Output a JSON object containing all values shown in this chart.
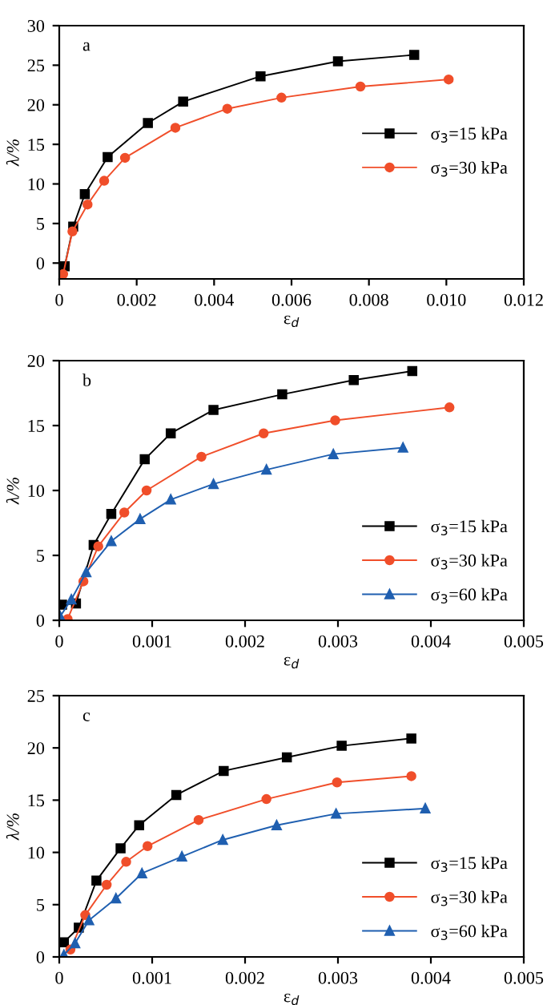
{
  "chart_data": [
    {
      "type": "line",
      "annotations": [
        "a"
      ],
      "xlabel": "ε$_{d}$",
      "ylabel": "λ/%",
      "xlim": [
        0,
        0.012
      ],
      "xticks": [
        0,
        0.002,
        0.004,
        0.006,
        0.008,
        {
          "value": 0.01,
          "label": "0.010"
        },
        0.012
      ],
      "ylim": [
        -2,
        30
      ],
      "yticks": [
        0,
        5,
        10,
        15,
        20,
        25,
        30
      ],
      "legend": "center right",
      "grid": false,
      "series": [
        {
          "name": "σ$_{3}$=15 kPa",
          "color": "#000000",
          "marker": "square",
          "x": [
            0.00014,
            0.00036,
            0.00066,
            0.00125,
            0.00229,
            0.0032,
            0.0052,
            0.0072,
            0.00917
          ],
          "values": [
            -0.4,
            4.6,
            8.7,
            13.4,
            17.7,
            20.4,
            23.6,
            25.5,
            26.3
          ]
        },
        {
          "name": "σ$_{3}$=30 kPa",
          "color": "#f04e2a",
          "marker": "circle",
          "x": [
            0.0001,
            0.00034,
            0.00073,
            0.00116,
            0.0017,
            0.003,
            0.00434,
            0.00574,
            0.00778,
            0.01006
          ],
          "values": [
            -1.4,
            4.0,
            7.4,
            10.4,
            13.3,
            17.1,
            19.5,
            20.9,
            22.3,
            23.2
          ]
        }
      ]
    },
    {
      "type": "line",
      "annotations": [
        "b"
      ],
      "xlabel": "ε$_{d}$",
      "ylabel": "λ/%",
      "xlim": [
        0,
        0.005
      ],
      "xticks": [
        0,
        0.001,
        0.002,
        0.003,
        0.004,
        0.005
      ],
      "ylim": [
        0,
        20
      ],
      "yticks": [
        0,
        5,
        10,
        15,
        20
      ],
      "legend": "lower right",
      "grid": false,
      "series": [
        {
          "name": "σ$_{3}$=15 kPa",
          "color": "#000000",
          "marker": "square",
          "x": [
            3e-05,
            0.00018,
            0.00037,
            0.00056,
            0.00092,
            0.0012,
            0.00166,
            0.0024,
            0.00317,
            0.0038
          ],
          "values": [
            1.2,
            1.3,
            5.8,
            8.2,
            12.4,
            14.4,
            16.2,
            17.4,
            18.5,
            19.2
          ]
        },
        {
          "name": "σ$_{3}$=30 kPa",
          "color": "#f04e2a",
          "marker": "circle",
          "x": [
            9e-05,
            0.00026,
            0.00042,
            0.0007,
            0.00094,
            0.00153,
            0.0022,
            0.00297,
            0.0042
          ],
          "values": [
            0.1,
            3.0,
            5.7,
            8.3,
            10.0,
            12.6,
            14.4,
            15.4,
            16.4
          ]
        },
        {
          "name": "σ$_{3}$=60 kPa",
          "color": "#1f5fb0",
          "marker": "triangle",
          "x": [
            1e-05,
            0.00013,
            0.00029,
            0.00056,
            0.00087,
            0.0012,
            0.00166,
            0.00223,
            0.00295,
            0.0037
          ],
          "values": [
            0.3,
            1.6,
            3.7,
            6.1,
            7.8,
            9.3,
            10.5,
            11.6,
            12.8,
            13.3
          ]
        }
      ]
    },
    {
      "type": "line",
      "annotations": [
        "c"
      ],
      "xlabel": "ε$_{d}$",
      "ylabel": "λ/%",
      "xlim": [
        0,
        0.005
      ],
      "xticks": [
        0,
        0.001,
        0.002,
        0.003,
        0.004,
        0.005
      ],
      "ylim": [
        0,
        25
      ],
      "yticks": [
        0,
        5,
        10,
        15,
        20,
        25
      ],
      "legend": "lower right",
      "grid": false,
      "series": [
        {
          "name": "σ$_{3}$=15 kPa",
          "color": "#000000",
          "marker": "square",
          "x": [
            5e-05,
            0.00021,
            0.0004,
            0.00066,
            0.00086,
            0.00126,
            0.00177,
            0.00245,
            0.00304,
            0.00379
          ],
          "values": [
            1.4,
            2.8,
            7.3,
            10.4,
            12.6,
            15.5,
            17.8,
            19.1,
            20.2,
            20.9
          ]
        },
        {
          "name": "σ$_{3}$=30 kPa",
          "color": "#f04e2a",
          "marker": "circle",
          "x": [
            0.00012,
            0.00028,
            0.00051,
            0.00072,
            0.00095,
            0.0015,
            0.00223,
            0.00299,
            0.00379
          ],
          "values": [
            0.7,
            4.0,
            6.9,
            9.1,
            10.6,
            13.1,
            15.1,
            16.7,
            17.3
          ]
        },
        {
          "name": "σ$_{3}$=60 kPa",
          "color": "#1f5fb0",
          "marker": "triangle",
          "x": [
            5e-05,
            0.00017,
            0.00032,
            0.00061,
            0.00089,
            0.00132,
            0.00176,
            0.00234,
            0.00298,
            0.00394
          ],
          "values": [
            0.2,
            1.3,
            3.5,
            5.6,
            8.0,
            9.6,
            11.2,
            12.6,
            13.7,
            14.2
          ]
        }
      ]
    }
  ]
}
